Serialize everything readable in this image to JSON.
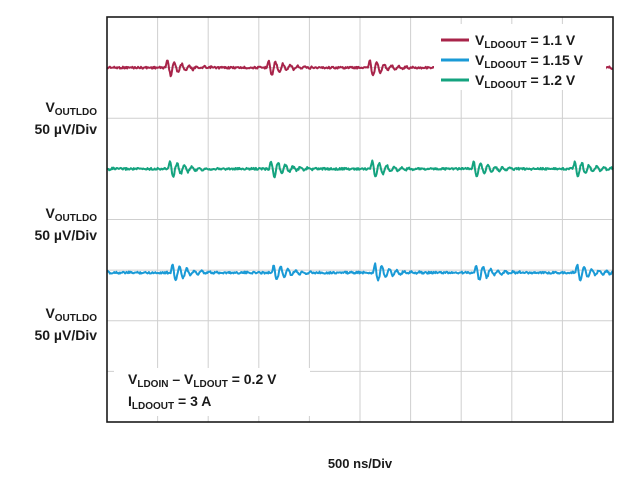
{
  "chart_data": {
    "type": "line",
    "title": "",
    "xlabel": "500 ns/Div",
    "grid": true,
    "x_divisions": 10,
    "y_divisions": 8,
    "channel_labels": [
      {
        "name": "V",
        "sub": "OUTLDO",
        "scale": "50 µV/Div"
      },
      {
        "name": "V",
        "sub": "OUTLDO",
        "scale": "50 µV/Div"
      },
      {
        "name": "V",
        "sub": "OUTLDO",
        "scale": "50 µV/Div"
      }
    ],
    "legend_position": "top-right",
    "series": [
      {
        "name": "V_LDOOUT = 1.1 V",
        "legend": {
          "main": "V",
          "sub": "LDOOUT",
          "rest": " = 1.1 V"
        },
        "color": "#a8244a",
        "baseline_div": 1.0,
        "burst_phase_div": 0.0
      },
      {
        "name": "V_LDOOUT = 1.15 V",
        "legend": {
          "main": "V",
          "sub": "LDOOUT",
          "rest": " = 1.15 V"
        },
        "color": "#1a9ad6",
        "baseline_div": 5.05,
        "burst_phase_div": 0.1
      },
      {
        "name": "V_LDOOUT = 1.2 V",
        "legend": {
          "main": "V",
          "sub": "LDOOUT",
          "rest": " = 1.2 V"
        },
        "color": "#14a37f",
        "baseline_div": 3.0,
        "burst_phase_div": 0.05
      }
    ],
    "burst_period_div": 2.0,
    "burst_start_div": 1.15,
    "burst_amplitude_div": 0.25
  },
  "annotation": {
    "line1": {
      "a": "V",
      "a_sub": "LDOIN",
      "mid": " – V",
      "b_sub": "LDOUT",
      "rest": " = 0.2 V"
    },
    "line2": {
      "a": "I",
      "a_sub": "LDOOUT",
      "rest": " = 3 A"
    }
  }
}
